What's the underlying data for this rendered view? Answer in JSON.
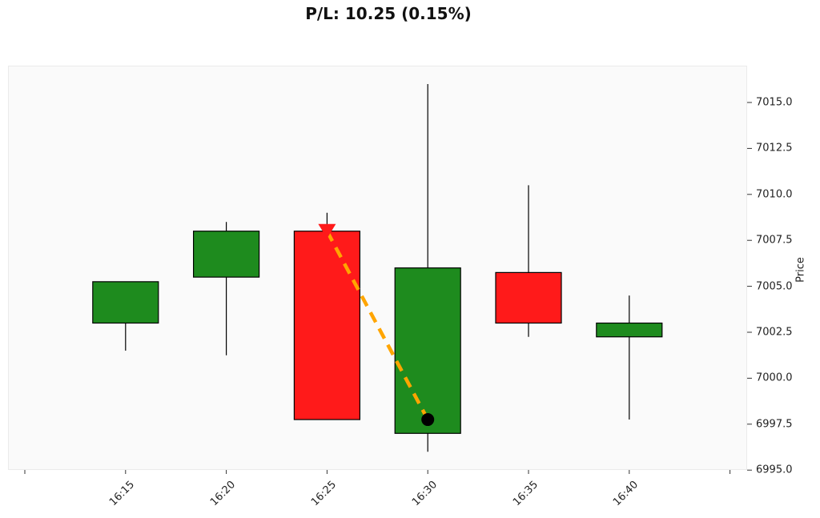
{
  "chart_data": {
    "type": "candlestick",
    "title": "P/L: 10.25 (0.15%)",
    "xlabel": "",
    "ylabel": "Price",
    "y_axis_position": "right",
    "ylim": [
      6995.0,
      7017.0
    ],
    "yticks": [
      "7015.0",
      "7012.5",
      "7010.0",
      "7007.5",
      "7005.0",
      "7002.5",
      "7000.0",
      "6997.5",
      "6995.0"
    ],
    "xticks": [
      "",
      "16:15",
      "16:20",
      "16:25",
      "16:30",
      "16:35",
      "16:40",
      ""
    ],
    "grid": false,
    "categories": [
      "16:15",
      "16:20",
      "16:25",
      "16:30",
      "16:35",
      "16:40"
    ],
    "candles": [
      {
        "time": "16:15",
        "open": 7003.0,
        "high": 7005.25,
        "low": 7001.5,
        "close": 7005.25,
        "direction": "up"
      },
      {
        "time": "16:20",
        "open": 7005.5,
        "high": 7008.5,
        "low": 7001.25,
        "close": 7008.0,
        "direction": "up"
      },
      {
        "time": "16:25",
        "open": 7008.0,
        "high": 7009.0,
        "low": 6997.75,
        "close": 6997.75,
        "direction": "down"
      },
      {
        "time": "16:30",
        "open": 6997.0,
        "high": 7016.0,
        "low": 6996.0,
        "close": 7006.0,
        "direction": "up"
      },
      {
        "time": "16:35",
        "open": 7005.75,
        "high": 7010.5,
        "low": 7002.25,
        "close": 7003.0,
        "direction": "down"
      },
      {
        "time": "16:40",
        "open": 7002.25,
        "high": 7004.5,
        "low": 6997.75,
        "close": 7003.0,
        "direction": "up"
      }
    ],
    "trade": {
      "entry": {
        "time": "16:25",
        "price": 7008.0,
        "marker": "red-down-triangle",
        "side": "short"
      },
      "exit": {
        "time": "16:30",
        "price": 6997.75,
        "marker": "black-circle"
      },
      "line_style": "dashed",
      "line_color": "#FFA500",
      "pnl": 10.25,
      "pnl_pct": 0.15
    },
    "colors": {
      "up": "#1E8B1E",
      "down": "#FF1A1A",
      "edge": "#000000",
      "background": "#FAFAFA"
    }
  }
}
